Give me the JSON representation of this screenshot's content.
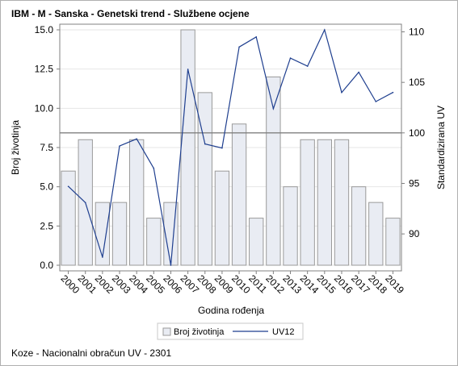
{
  "header": {
    "title": "IBM - M - Sanska - Genetski trend - Službene ocjene"
  },
  "footer": {
    "note": "Koze - Nacionalni obračun UV - 2301"
  },
  "colors": {
    "bar_fill": "#e9ecf3",
    "bar_stroke": "#9a9a9a",
    "line": "#1f3f8f",
    "reference_line": "#808080",
    "grid": "#e6e6e6"
  },
  "chart_data": {
    "type": "bar",
    "categories": [
      "2000",
      "2001",
      "2002",
      "2003",
      "2004",
      "2005",
      "2006",
      "2007",
      "2008",
      "2009",
      "2010",
      "2011",
      "2012",
      "2013",
      "2014",
      "2015",
      "2016",
      "2017",
      "2018",
      "2019"
    ],
    "series": [
      {
        "name": "Broj životinja",
        "type": "bar",
        "axis": "left",
        "values": [
          6,
          8,
          4,
          4,
          8,
          3,
          4,
          15,
          11,
          6,
          9,
          3,
          12,
          5,
          8,
          8,
          8,
          5,
          4,
          3
        ]
      },
      {
        "name": "UV12",
        "type": "line",
        "axis": "right",
        "values": [
          94.7,
          93.1,
          87.7,
          98.7,
          99.4,
          96.5,
          86.9,
          106.3,
          98.9,
          98.5,
          108.5,
          109.5,
          102.4,
          107.4,
          106.6,
          110.2,
          104.0,
          106.0,
          103.1,
          104.0
        ]
      }
    ],
    "xlabel": "Godina rođenja",
    "ylabel": "Broj životinja",
    "y2label": "Standardizirana UV",
    "ylim": [
      0,
      15
    ],
    "y2lim": [
      86.9,
      110.2
    ],
    "yticks": [
      "0.0",
      "2.5",
      "5.0",
      "7.5",
      "10.0",
      "12.5",
      "15.0"
    ],
    "y2ticks": [
      "90",
      "95",
      "100",
      "105",
      "110"
    ],
    "reference_line": {
      "axis": "right",
      "value": 100
    },
    "grid": true,
    "legend": "bottom-center"
  }
}
